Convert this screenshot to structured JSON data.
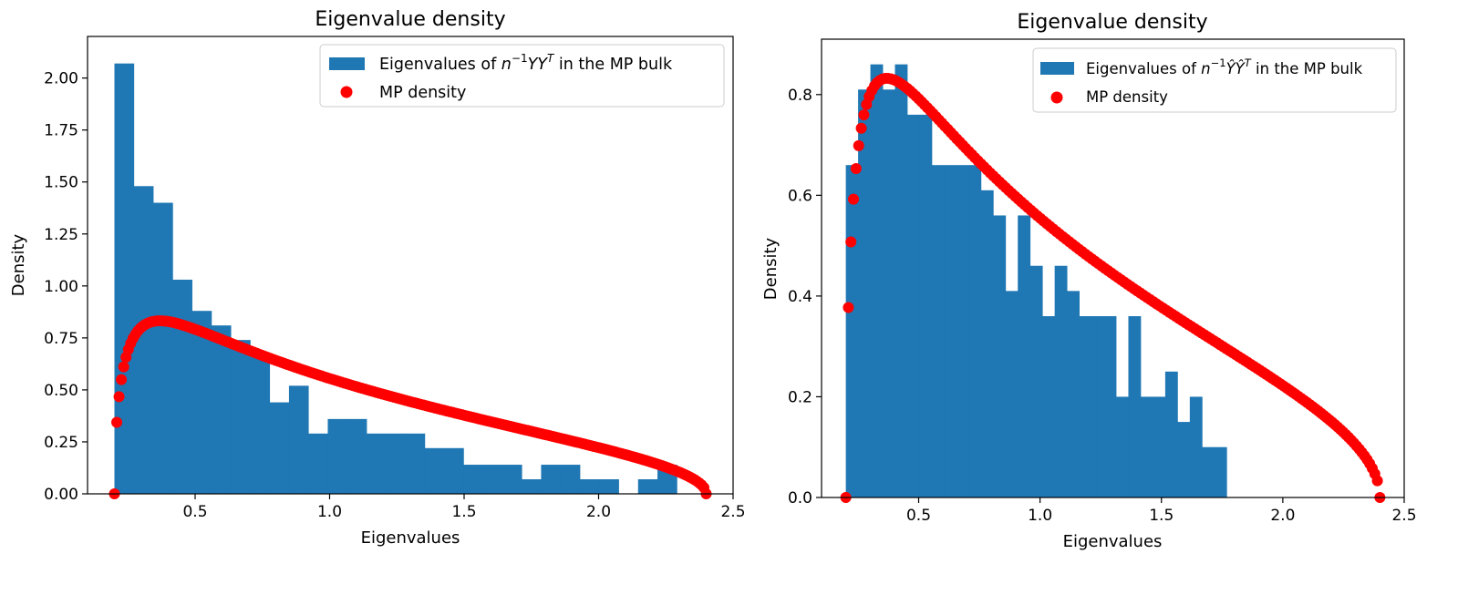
{
  "chart_data": [
    {
      "type": "bar",
      "title": "Eigenvalue density",
      "xlabel": "Eigenvalues",
      "ylabel": "Density",
      "xlim": [
        0.1,
        2.5
      ],
      "ylim": [
        0,
        2.2
      ],
      "xticks": [
        0.5,
        1.0,
        1.5,
        2.0,
        2.5
      ],
      "xtick_labels": [
        "0.5",
        "1.0",
        "1.5",
        "2.0",
        "2.5"
      ],
      "yticks": [
        0,
        0.25,
        0.5,
        0.75,
        1.0,
        1.25,
        1.5,
        1.75,
        2.0
      ],
      "ytick_labels": [
        "0.00",
        "0.25",
        "0.50",
        "0.75",
        "1.00",
        "1.25",
        "1.50",
        "1.75",
        "2.00"
      ],
      "legend_position": "top-right",
      "legend": {
        "hist_prefix": "Eigenvalues of ",
        "hist_math_base": "n",
        "hist_math_exp": "−1",
        "hist_math_mid": "YY",
        "hist_math_sup": "T",
        "hist_suffix": " in the MP bulk",
        "density_label": "MP density"
      },
      "histogram": {
        "name": "Eigenvalues of n^{-1}YY^T in the MP bulk",
        "color": "#1f77b4",
        "bin_start": 0.2,
        "bin_width": 0.0721,
        "values": [
          2.07,
          1.48,
          1.4,
          1.03,
          0.88,
          0.81,
          0.74,
          0.66,
          0.44,
          0.52,
          0.29,
          0.36,
          0.36,
          0.29,
          0.29,
          0.29,
          0.22,
          0.22,
          0.14,
          0.14,
          0.14,
          0.07,
          0.14,
          0.14,
          0.07,
          0.07,
          0.0,
          0.07,
          0.14,
          0.0
        ]
      },
      "mp_density": {
        "name": "MP density",
        "color": "#ff0000",
        "lambda_min": 0.2,
        "lambda_max": 2.4,
        "sigma2": 1.0
      }
    },
    {
      "type": "bar",
      "title": "Eigenvalue density",
      "xlabel": "Eigenvalues",
      "ylabel": "Density",
      "xlim": [
        0.1,
        2.5
      ],
      "ylim": [
        0,
        0.91
      ],
      "xticks": [
        0.5,
        1.0,
        1.5,
        2.0,
        2.5
      ],
      "xtick_labels": [
        "0.5",
        "1.0",
        "1.5",
        "2.0",
        "2.5"
      ],
      "yticks": [
        0,
        0.2,
        0.4,
        0.6,
        0.8
      ],
      "ytick_labels": [
        "0.0",
        "0.2",
        "0.4",
        "0.6",
        "0.8"
      ],
      "legend_position": "top-right",
      "legend": {
        "hist_prefix": "Eigenvalues of ",
        "hist_math_base": "n",
        "hist_math_exp": "−1",
        "hist_math_mid": "ŶŶ",
        "hist_math_sup": "T",
        "hist_suffix": " in the MP bulk",
        "density_label": "MP density"
      },
      "histogram": {
        "name": "Eigenvalues of n^{-1}ŶŶ^T in the MP bulk",
        "color": "#1f77b4",
        "bin_start": 0.2,
        "bin_width": 0.0506,
        "values": [
          0.66,
          0.81,
          0.86,
          0.81,
          0.86,
          0.76,
          0.76,
          0.66,
          0.66,
          0.66,
          0.66,
          0.61,
          0.56,
          0.41,
          0.56,
          0.46,
          0.36,
          0.46,
          0.41,
          0.36,
          0.36,
          0.36,
          0.2,
          0.36,
          0.2,
          0.2,
          0.25,
          0.15,
          0.2,
          0.1,
          0.1
        ]
      },
      "mp_density": {
        "name": "MP density",
        "color": "#ff0000",
        "lambda_min": 0.2,
        "lambda_max": 2.4,
        "sigma2": 1.0
      }
    }
  ]
}
